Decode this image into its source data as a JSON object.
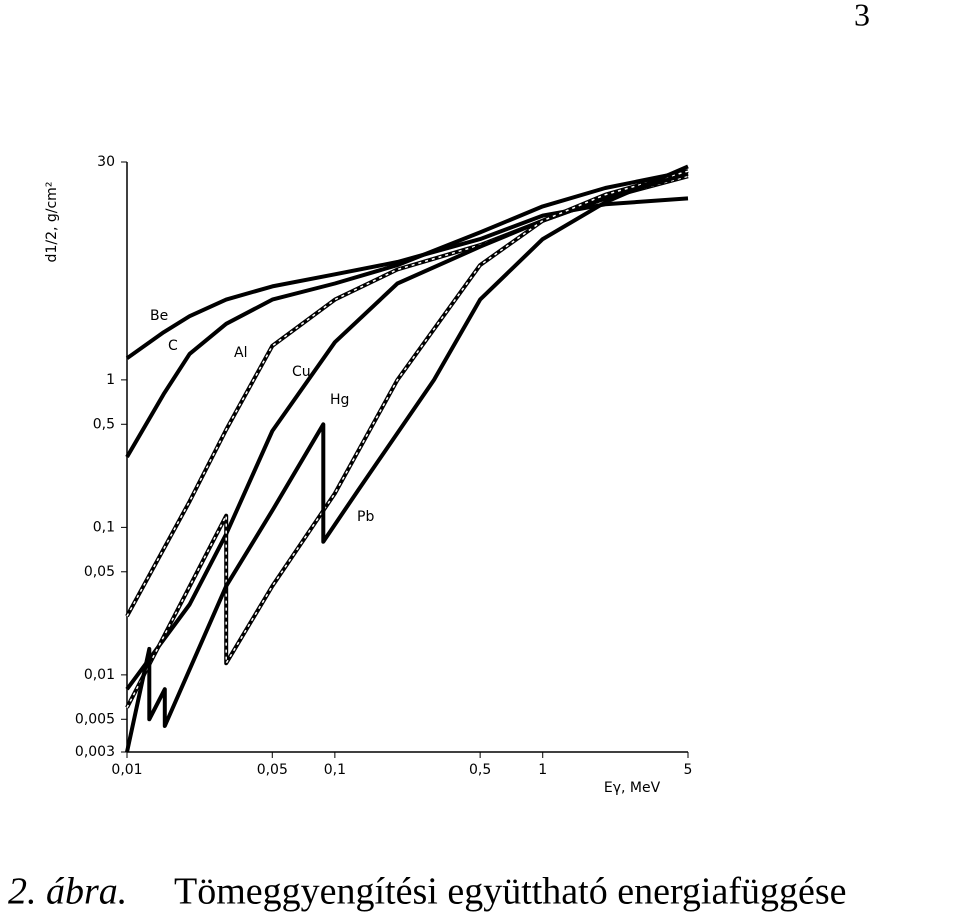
{
  "page_number": "3",
  "caption_label": "2. ábra.",
  "caption_text": "Tömeggyengítési együttható energiafüggése",
  "chart_data": {
    "type": "line",
    "x_label": "Eγ, MeV",
    "y_label": "d1/2, g/cm²",
    "log_x": true,
    "log_y": true,
    "xlim": [
      0.01,
      5
    ],
    "ylim": [
      0.003,
      30
    ],
    "xticks": [
      {
        "value": 0.01,
        "label": "0,01"
      },
      {
        "value": 0.05,
        "label": "0,05"
      },
      {
        "value": 0.1,
        "label": "0,1"
      },
      {
        "value": 0.5,
        "label": "0,5"
      },
      1,
      5
    ],
    "yticks": [
      {
        "value": 0.003,
        "label": "0,003"
      },
      {
        "value": 0.005,
        "label": "0,005"
      },
      {
        "value": 0.01,
        "label": "0,01"
      },
      {
        "value": 0.05,
        "label": "0,05"
      },
      {
        "value": 0.1,
        "label": "0,1"
      },
      {
        "value": 0.5,
        "label": "0,5"
      },
      1,
      30
    ],
    "series": [
      {
        "name": "Be",
        "color": "#000000",
        "dashed": false,
        "x": [
          0.01,
          0.015,
          0.02,
          0.03,
          0.05,
          0.1,
          0.2,
          0.5,
          1,
          2,
          5
        ],
        "values": [
          1.4,
          2.1,
          2.7,
          3.5,
          4.3,
          5.2,
          6.3,
          9,
          13,
          15.5,
          17
        ]
      },
      {
        "name": "C",
        "color": "#000000",
        "dashed": false,
        "x": [
          0.01,
          0.015,
          0.02,
          0.03,
          0.05,
          0.1,
          0.2,
          0.5,
          1,
          2,
          5
        ],
        "values": [
          0.3,
          0.8,
          1.5,
          2.4,
          3.5,
          4.5,
          6,
          10,
          15,
          20,
          26
        ]
      },
      {
        "name": "Al",
        "color": "#000000",
        "dashed": true,
        "x": [
          0.01,
          0.02,
          0.03,
          0.05,
          0.1,
          0.2,
          0.5,
          1,
          2,
          5
        ],
        "values": [
          0.025,
          0.15,
          0.46,
          1.7,
          3.5,
          5.6,
          8.2,
          12,
          17,
          24
        ]
      },
      {
        "name": "Cu",
        "color": "#000000",
        "dashed": false,
        "x": [
          0.01,
          0.02,
          0.03,
          0.05,
          0.1,
          0.2,
          0.5,
          1,
          2,
          5
        ],
        "values": [
          0.008,
          0.03,
          0.09,
          0.45,
          1.8,
          4.5,
          8,
          12,
          17,
          25
        ]
      },
      {
        "name": "Hg",
        "color": "#000000",
        "dashed": true,
        "x": [
          0.01,
          0.03,
          0.03,
          0.05,
          0.1,
          0.2,
          0.5,
          1,
          2,
          5
        ],
        "values": [
          0.006,
          0.12,
          0.012,
          0.04,
          0.17,
          1,
          6,
          12,
          18,
          26
        ]
      },
      {
        "name": "Pb",
        "color": "#000000",
        "dashed": false,
        "x": [
          0.01,
          0.0128,
          0.0128,
          0.0152,
          0.0152,
          0.03,
          0.05,
          0.088,
          0.088,
          0.13,
          0.3,
          0.5,
          1,
          2,
          5
        ],
        "values": [
          0.003,
          0.015,
          0.005,
          0.008,
          0.0045,
          0.04,
          0.13,
          0.5,
          0.08,
          0.18,
          1,
          3.5,
          9,
          16,
          28
        ]
      }
    ]
  }
}
